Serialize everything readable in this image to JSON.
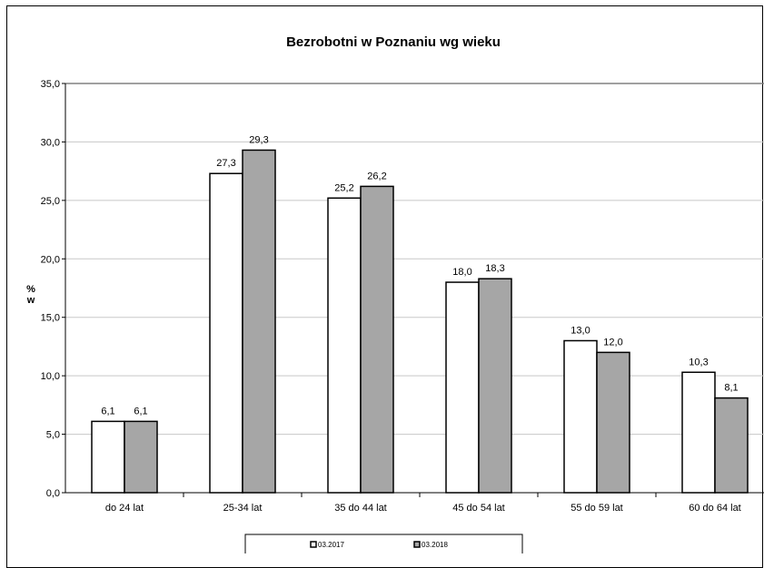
{
  "chart_data": {
    "type": "bar",
    "title": "Bezrobotni w Poznaniu wg wieku",
    "ylabel": "% w",
    "ylabel_lines": [
      "%",
      "w"
    ],
    "ylim": [
      0,
      35
    ],
    "ytick_step": 5,
    "ytick_labels": [
      "0,0",
      "5,0",
      "10,0",
      "15,0",
      "20,0",
      "25,0",
      "30,0",
      "35,0"
    ],
    "grid": true,
    "legend_position": "bottom",
    "categories": [
      "do 24 lat",
      "25-34 lat",
      "35 do 44 lat",
      "45 do 54 lat",
      "55 do 59 lat",
      "60 do 64 lat"
    ],
    "series": [
      {
        "name": "03.2017",
        "values": [
          6.1,
          27.3,
          25.2,
          18.0,
          13.0,
          10.3
        ],
        "labels": [
          "6,1",
          "27,3",
          "25,2",
          "18,0",
          "13,0",
          "10,3"
        ],
        "color": "#ffffff"
      },
      {
        "name": "03.2018",
        "values": [
          6.1,
          29.3,
          26.2,
          18.3,
          12.0,
          8.1
        ],
        "labels": [
          "6,1",
          "29,3",
          "26,2",
          "18,3",
          "12,0",
          "8,1"
        ],
        "color": "#a6a6a6"
      }
    ]
  }
}
